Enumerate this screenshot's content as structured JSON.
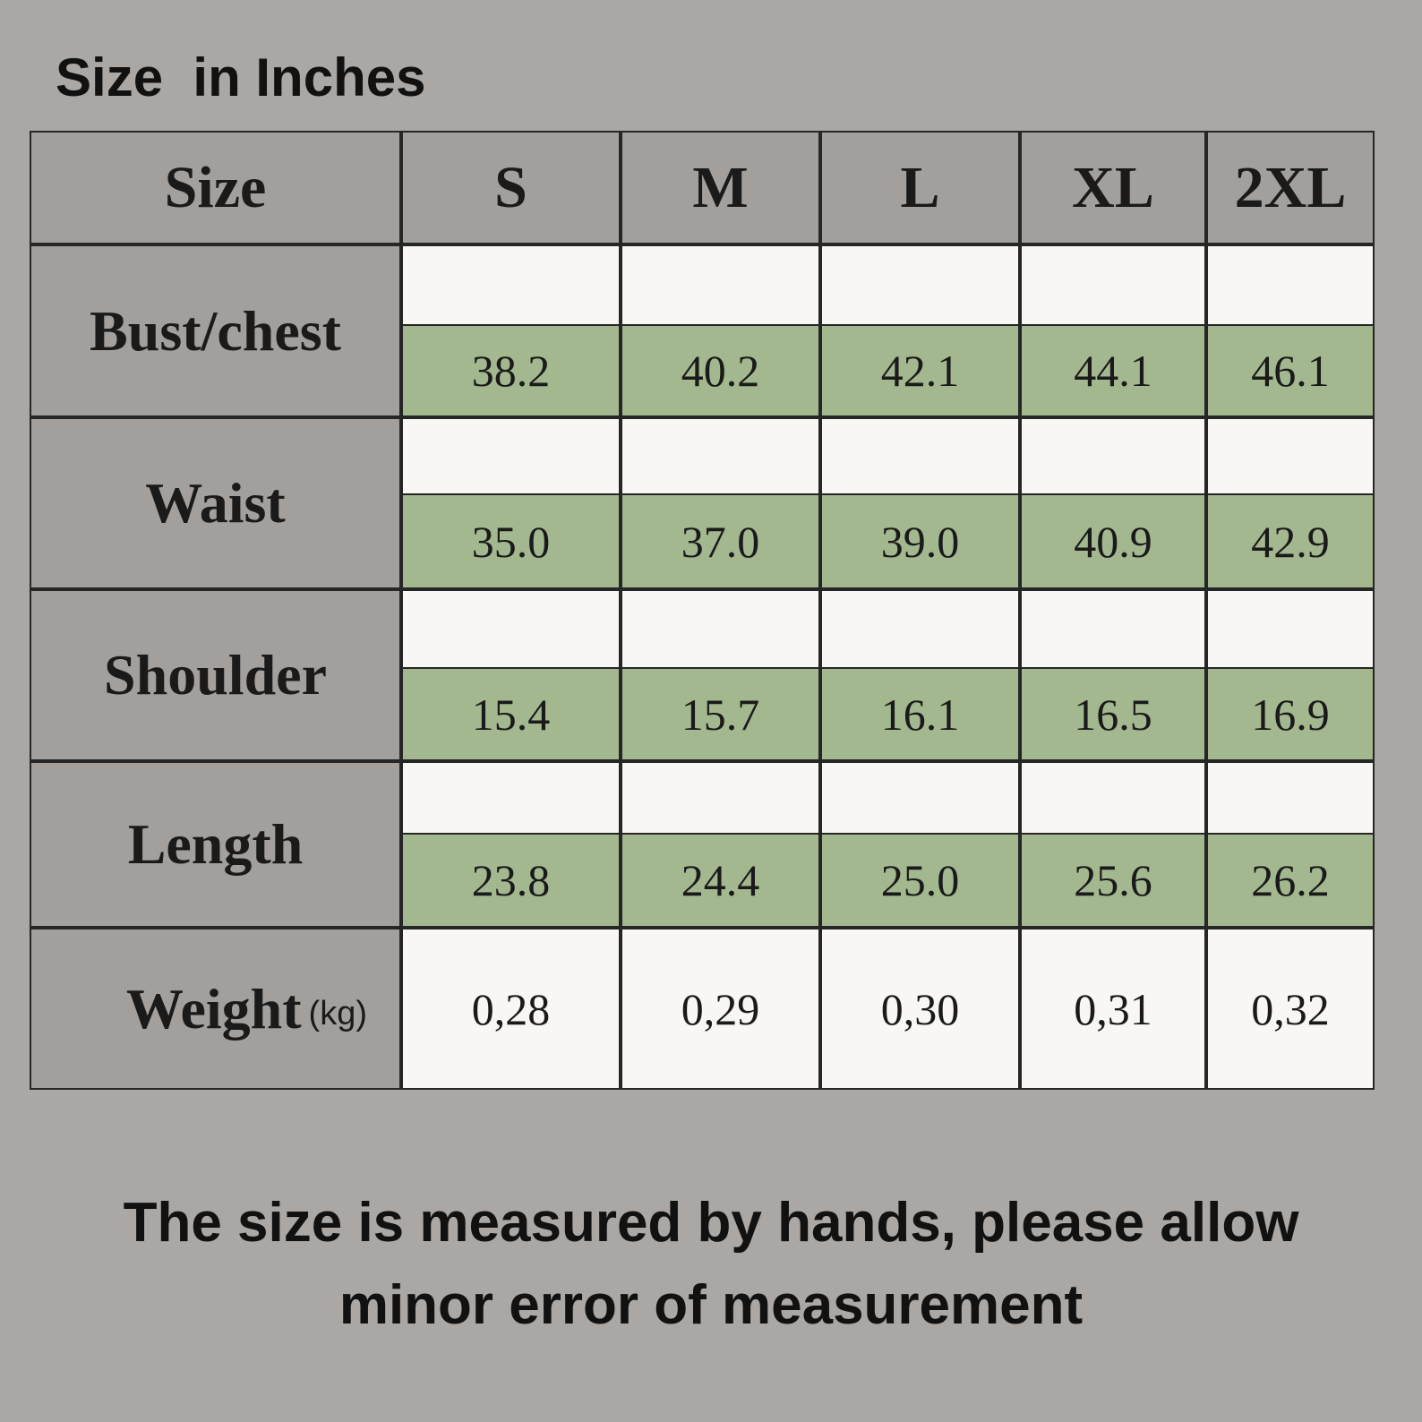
{
  "title": "Size  in Inches",
  "table": {
    "header": [
      "Size",
      "S",
      "M",
      "L",
      "XL",
      "2XL"
    ],
    "rows": [
      {
        "label": "Bust/chest",
        "values": [
          "38.2",
          "40.2",
          "42.1",
          "44.1",
          "46.1"
        ]
      },
      {
        "label": "Waist",
        "values": [
          "35.0",
          "37.0",
          "39.0",
          "40.9",
          "42.9"
        ]
      },
      {
        "label": "Shoulder",
        "values": [
          "15.4",
          "15.7",
          "16.1",
          "16.5",
          "16.9"
        ]
      },
      {
        "label": "Length",
        "values": [
          "23.8",
          "24.4",
          "25.0",
          "25.6",
          "26.2"
        ]
      },
      {
        "label": "Weight",
        "unit": "(kg)",
        "values": [
          "0,28",
          "0,29",
          "0,30",
          "0,31",
          "0,32"
        ]
      }
    ]
  },
  "footer": [
    "The size is measured by hands, please allow",
    "minor error of measurement"
  ]
}
